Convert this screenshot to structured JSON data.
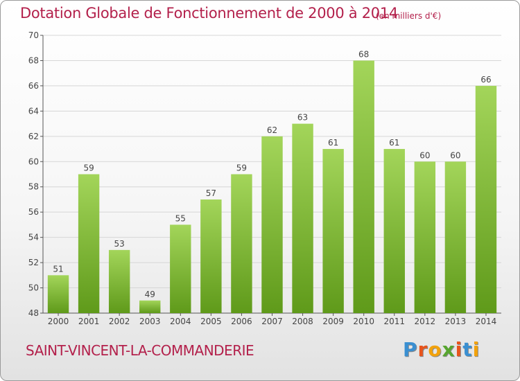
{
  "header": {
    "title": "Dotation Globale de Fonctionnement de 2000 à 2014",
    "subtitle": "(en milliers d'€)"
  },
  "footer": {
    "commune": "SAINT-VINCENT-LA-COMMANDERIE",
    "logo_letters": [
      "P",
      "r",
      "o",
      "x",
      "i",
      "t",
      "i"
    ]
  },
  "colors": {
    "title": "#b3204b",
    "bar_light": "#a3d55a",
    "bar_dark": "#5f9a1a",
    "grid": "#d6d6d6",
    "logo": [
      "#3a8fd1",
      "#e8541c",
      "#f2a20c",
      "#57a52f",
      "#e8541c",
      "#3a8fd1",
      "#f2a20c"
    ]
  },
  "chart_data": {
    "type": "bar",
    "categories": [
      "2000",
      "2001",
      "2002",
      "2003",
      "2004",
      "2005",
      "2006",
      "2007",
      "2008",
      "2009",
      "2010",
      "2011",
      "2012",
      "2013",
      "2014"
    ],
    "values": [
      51,
      59,
      53,
      49,
      55,
      57,
      59,
      62,
      63,
      61,
      68,
      61,
      60,
      60,
      66
    ],
    "ylim": [
      48,
      70
    ],
    "yticks": [
      48,
      50,
      52,
      54,
      56,
      58,
      60,
      62,
      64,
      66,
      68,
      70
    ],
    "grid": true,
    "data_labels": true
  }
}
